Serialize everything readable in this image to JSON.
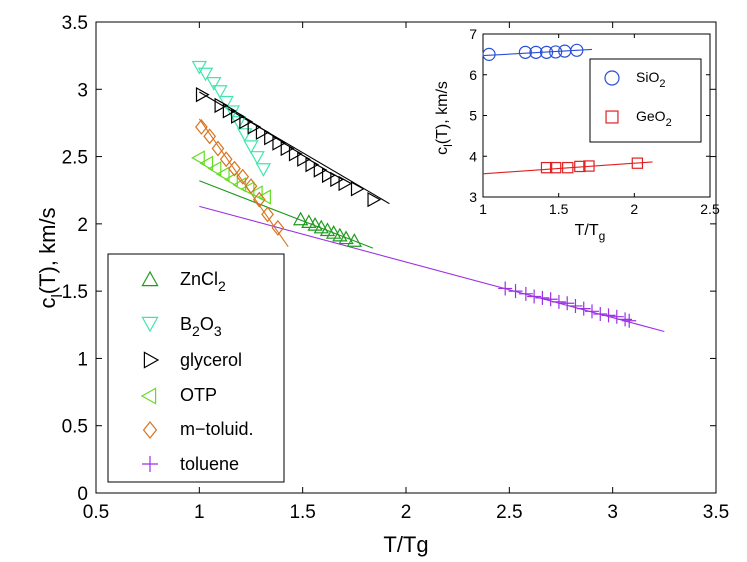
{
  "chart_data": [
    {
      "id": "main",
      "type": "scatter",
      "xlabel": "T/Tg",
      "ylabel": {
        "prefix": "c",
        "sub": "l",
        "suffix": "(T), km/s"
      },
      "xlim": [
        0.5,
        3.5
      ],
      "ylim": [
        0,
        3.5
      ],
      "xticks": [
        0.5,
        1,
        1.5,
        2,
        2.5,
        3,
        3.5
      ],
      "xtick_labels": [
        "0.5",
        "1",
        "1.5",
        "2",
        "2.5",
        "3",
        "3.5"
      ],
      "yticks": [
        0,
        0.5,
        1,
        1.5,
        2,
        2.5,
        3,
        3.5
      ],
      "ytick_labels": [
        "0",
        "0.5",
        "1",
        "1.5",
        "2",
        "2.5",
        "3",
        "3.5"
      ],
      "legend_position": "lower-left",
      "series": [
        {
          "name": "ZnCl2",
          "legend_label": {
            "base": "ZnCl",
            "sub": "2",
            "rest": ""
          },
          "marker": "triangle-up",
          "color": "#1f9a1f",
          "x": [
            1.49,
            1.53,
            1.56,
            1.59,
            1.62,
            1.65,
            1.68,
            1.71,
            1.75
          ],
          "y": [
            2.03,
            2.01,
            1.99,
            1.97,
            1.95,
            1.93,
            1.91,
            1.89,
            1.87
          ],
          "fit": [
            [
              1.0,
              2.32
            ],
            [
              1.84,
              1.82
            ]
          ]
        },
        {
          "name": "B2O3",
          "legend_label": {
            "base": "B",
            "sub": "2",
            "rest": "O",
            "sub2": "3"
          },
          "marker": "triangle-down",
          "color": "#3ee6b0",
          "x": [
            1.0,
            1.03,
            1.07,
            1.1,
            1.13,
            1.16,
            1.19,
            1.22,
            1.25,
            1.28,
            1.31
          ],
          "y": [
            3.17,
            3.12,
            3.05,
            2.99,
            2.91,
            2.84,
            2.76,
            2.67,
            2.58,
            2.5,
            2.41
          ],
          "fit": null
        },
        {
          "name": "glycerol",
          "legend_label": {
            "base": "glycerol",
            "sub": "",
            "rest": ""
          },
          "marker": "triangle-right",
          "color": "#000000",
          "x": [
            1.01,
            1.1,
            1.14,
            1.18,
            1.22,
            1.26,
            1.3,
            1.34,
            1.38,
            1.42,
            1.46,
            1.5,
            1.54,
            1.58,
            1.62,
            1.66,
            1.7,
            1.76,
            1.84
          ],
          "y": [
            2.96,
            2.88,
            2.84,
            2.8,
            2.76,
            2.72,
            2.68,
            2.64,
            2.6,
            2.56,
            2.52,
            2.48,
            2.44,
            2.4,
            2.36,
            2.33,
            2.3,
            2.26,
            2.18
          ],
          "fit": [
            [
              1.0,
              2.98
            ],
            [
              1.92,
              2.15
            ]
          ]
        },
        {
          "name": "OTP",
          "legend_label": {
            "base": "OTP",
            "sub": "",
            "rest": ""
          },
          "marker": "triangle-left",
          "color": "#66dd22",
          "x": [
            1.0,
            1.04,
            1.08,
            1.12,
            1.16,
            1.2,
            1.24,
            1.28,
            1.32
          ],
          "y": [
            2.49,
            2.45,
            2.41,
            2.37,
            2.33,
            2.29,
            2.26,
            2.23,
            2.2
          ],
          "fit": null
        },
        {
          "name": "m-toluid.",
          "legend_label": {
            "base": "m−toluid.",
            "sub": "",
            "rest": ""
          },
          "marker": "diamond",
          "color": "#d9731f",
          "x": [
            1.01,
            1.05,
            1.09,
            1.13,
            1.17,
            1.21,
            1.25,
            1.29,
            1.33,
            1.38
          ],
          "y": [
            2.72,
            2.65,
            2.56,
            2.48,
            2.41,
            2.35,
            2.28,
            2.18,
            2.07,
            1.97
          ],
          "fit": [
            [
              1.0,
              2.78
            ],
            [
              1.43,
              1.83
            ]
          ]
        },
        {
          "name": "toluene",
          "legend_label": {
            "base": "toluene",
            "sub": "",
            "rest": ""
          },
          "marker": "plus",
          "color": "#9b30e6",
          "x": [
            2.48,
            2.53,
            2.58,
            2.62,
            2.66,
            2.7,
            2.74,
            2.78,
            2.82,
            2.86,
            2.9,
            2.94,
            2.98,
            3.02,
            3.06,
            3.08
          ],
          "y": [
            1.52,
            1.5,
            1.48,
            1.46,
            1.45,
            1.44,
            1.42,
            1.41,
            1.39,
            1.37,
            1.35,
            1.33,
            1.32,
            1.31,
            1.29,
            1.28
          ],
          "fit": [
            [
              1.0,
              2.13
            ],
            [
              3.25,
              1.2
            ]
          ]
        }
      ]
    },
    {
      "id": "inset",
      "type": "scatter",
      "xlabel": {
        "base": "T/T",
        "sub": "g"
      },
      "ylabel": {
        "prefix": "c",
        "sub": "l",
        "suffix": "(T), km/s"
      },
      "xlim": [
        1,
        2.5
      ],
      "ylim": [
        3,
        7
      ],
      "xticks": [
        1,
        1.5,
        2,
        2.5
      ],
      "xtick_labels": [
        "1",
        "1.5",
        "2",
        "2.5"
      ],
      "yticks": [
        3,
        4,
        5,
        6,
        7
      ],
      "ytick_labels": [
        "3",
        "4",
        "5",
        "6",
        "7"
      ],
      "legend_position": "right",
      "series": [
        {
          "name": "SiO2",
          "legend_label": {
            "base": "SiO",
            "sub": "2"
          },
          "marker": "circle",
          "color": "#2a4fd6",
          "x": [
            1.04,
            1.28,
            1.35,
            1.42,
            1.48,
            1.54,
            1.62
          ],
          "y": [
            6.5,
            6.55,
            6.55,
            6.55,
            6.56,
            6.58,
            6.6
          ],
          "fit": [
            [
              1.0,
              6.47
            ],
            [
              1.72,
              6.62
            ]
          ]
        },
        {
          "name": "GeO2",
          "legend_label": {
            "base": "GeO",
            "sub": "2"
          },
          "marker": "square",
          "color": "#e02020",
          "x": [
            1.42,
            1.48,
            1.56,
            1.64,
            1.7,
            2.02
          ],
          "y": [
            3.72,
            3.72,
            3.72,
            3.75,
            3.76,
            3.83
          ],
          "fit": [
            [
              1.0,
              3.57
            ],
            [
              2.12,
              3.86
            ]
          ]
        }
      ]
    }
  ]
}
